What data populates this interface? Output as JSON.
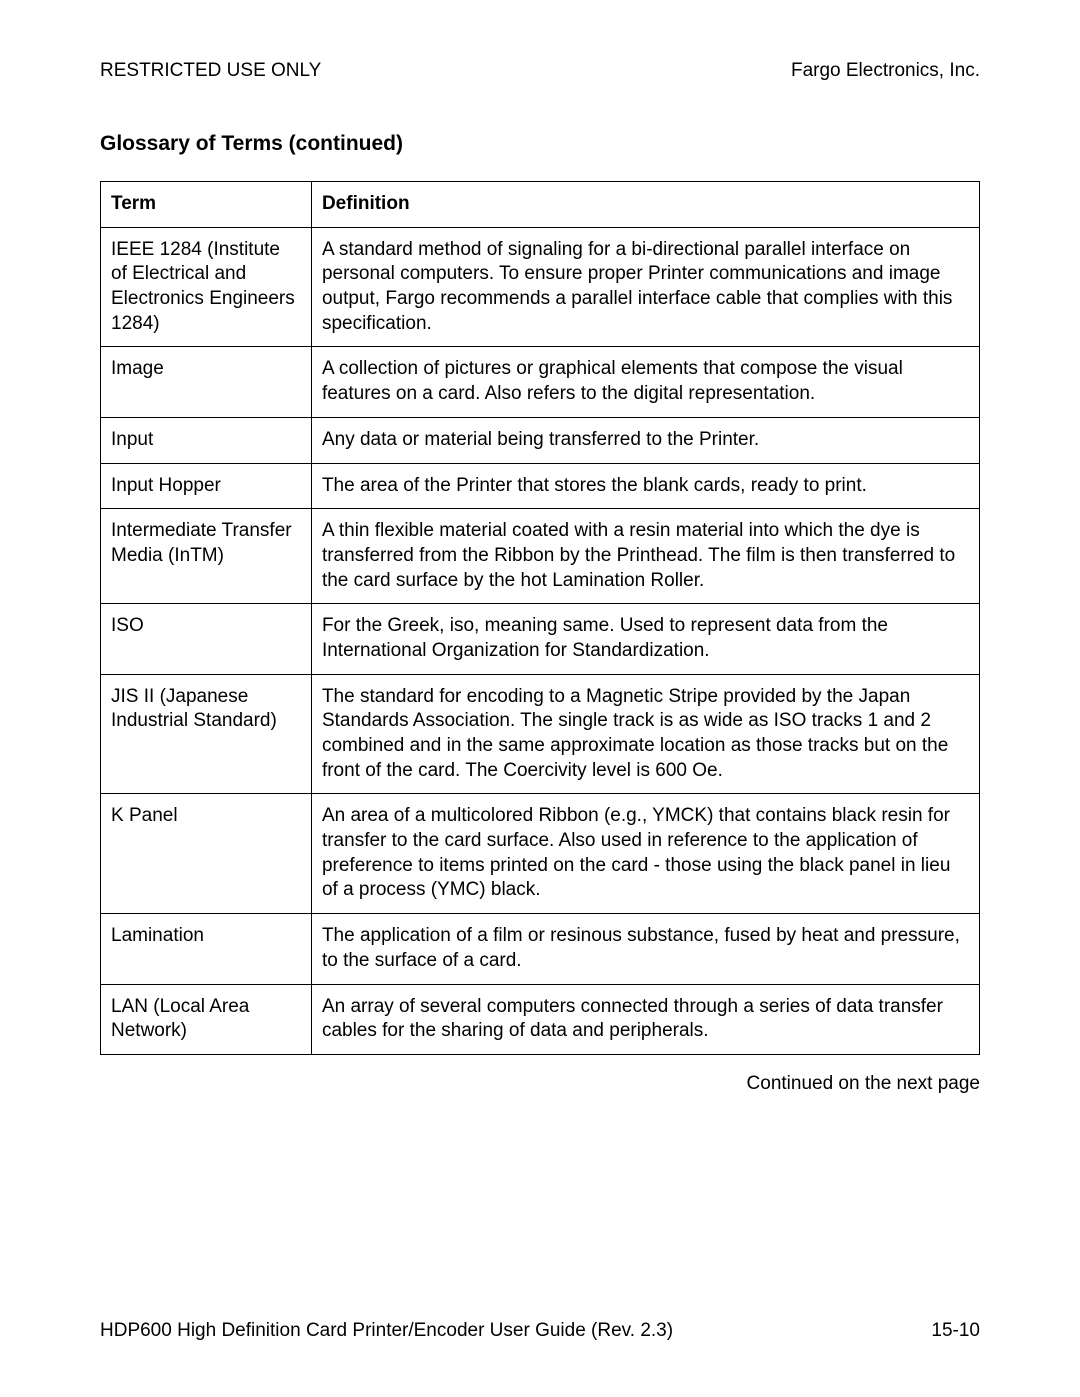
{
  "header": {
    "left": "RESTRICTED USE ONLY",
    "right": "Fargo Electronics, Inc."
  },
  "section_title": "Glossary of Terms (continued)",
  "table": {
    "columns": [
      "Term",
      "Definition"
    ],
    "rows": [
      {
        "term": "IEEE 1284 (Institute of Electrical and Electronics Engineers 1284)",
        "definition": "A standard method of signaling for a bi-directional parallel interface on personal computers. To ensure proper Printer communications and image output, Fargo recommends a parallel interface cable that complies with this specification."
      },
      {
        "term": "Image",
        "definition": "A collection of pictures or graphical elements that compose the visual features on a card. Also refers to the digital representation."
      },
      {
        "term": "Input",
        "definition": "Any data or material being transferred to the Printer."
      },
      {
        "term": "Input Hopper",
        "definition": "The area of the Printer that stores the blank cards, ready to print."
      },
      {
        "term": "Intermediate Transfer Media (InTM)",
        "definition": "A thin flexible material coated with a resin material into which the dye is transferred from the Ribbon by the Printhead. The film is then transferred to the card surface by the hot Lamination Roller."
      },
      {
        "term": "ISO",
        "definition": "For the Greek, iso, meaning same. Used to represent data from the International Organization for Standardization."
      },
      {
        "term": "JIS II (Japanese Industrial Standard)",
        "definition": "The standard for encoding to a Magnetic Stripe provided by the Japan Standards Association. The single track is as wide as ISO tracks 1 and 2 combined and in the same approximate location as those tracks but on the front of the card. The Coercivity level is 600 Oe."
      },
      {
        "term": "K Panel",
        "definition": "An area of a multicolored Ribbon (e.g., YMCK) that contains black resin for transfer to the card surface. Also used in reference to the application of preference to items printed on the card - those using the black panel in lieu of a process (YMC) black."
      },
      {
        "term": "Lamination",
        "definition": "The application of a film or resinous substance, fused by heat and pressure, to the surface of a card."
      },
      {
        "term": "LAN (Local Area Network)",
        "definition": "An array of several computers connected through a series of data transfer cables for the sharing of data and peripherals."
      }
    ]
  },
  "continued_text": "Continued on the next page",
  "footer": {
    "left": "HDP600 High Definition Card Printer/Encoder User Guide (Rev. 2.3)",
    "right": "15-10"
  }
}
